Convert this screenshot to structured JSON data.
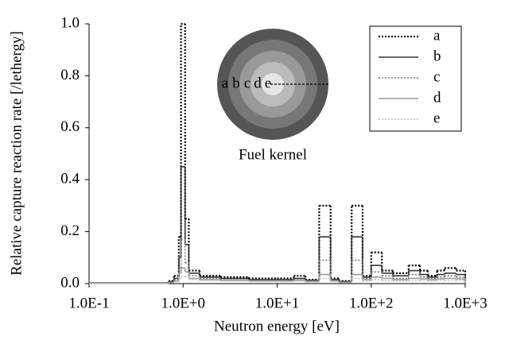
{
  "chart_data": {
    "type": "histogram",
    "xlabel": "Neutron energy [eV]",
    "ylabel": "Relative capture reaction rate [/lethergy]",
    "xscale": "log",
    "xlim": [
      0.1,
      1000
    ],
    "xticks": [
      {
        "value": 0.1,
        "label": "1.0E-1"
      },
      {
        "value": 1,
        "label": "1.0E+0"
      },
      {
        "value": 10,
        "label": "1.0E+1"
      },
      {
        "value": 100,
        "label": "1.0E+2"
      },
      {
        "value": 1000,
        "label": "1.0E+3"
      }
    ],
    "ylim": [
      0,
      1
    ],
    "yticks": [
      {
        "value": 0,
        "label": "0.0"
      },
      0.2,
      0.4,
      0.6,
      0.8,
      {
        "value": 1,
        "label": "1.0"
      }
    ],
    "grid": false,
    "legend": "upper right",
    "bins": [
      0.1,
      0.7,
      0.8,
      0.9,
      0.95,
      1.05,
      1.15,
      1.5,
      2.5,
      5,
      10,
      15,
      20,
      28,
      37,
      45,
      62,
      81,
      100,
      130,
      170,
      250,
      330,
      400,
      500,
      600,
      800,
      1000
    ],
    "series": [
      {
        "name": "a",
        "color": "#000000",
        "dash": true,
        "width": 2.2,
        "values": [
          0.002,
          0.01,
          0.03,
          0.18,
          1.0,
          0.25,
          0.05,
          0.03,
          0.025,
          0.02,
          0.02,
          0.03,
          0.015,
          0.3,
          0.02,
          0.01,
          0.3,
          0.03,
          0.12,
          0.05,
          0.04,
          0.07,
          0.05,
          0.03,
          0.05,
          0.06,
          0.05
        ]
      },
      {
        "name": "b",
        "color": "#333333",
        "dash": false,
        "width": 1.6,
        "values": [
          0.002,
          0.008,
          0.02,
          0.1,
          0.45,
          0.15,
          0.04,
          0.025,
          0.02,
          0.015,
          0.015,
          0.02,
          0.012,
          0.18,
          0.015,
          0.008,
          0.18,
          0.025,
          0.07,
          0.04,
          0.03,
          0.05,
          0.035,
          0.025,
          0.035,
          0.04,
          0.035
        ]
      },
      {
        "name": "c",
        "color": "#777777",
        "dash": true,
        "width": 1.6,
        "values": [
          0.001,
          0.005,
          0.015,
          0.06,
          0.17,
          0.08,
          0.03,
          0.02,
          0.015,
          0.012,
          0.012,
          0.015,
          0.01,
          0.09,
          0.012,
          0.006,
          0.09,
          0.02,
          0.045,
          0.03,
          0.02,
          0.035,
          0.025,
          0.02,
          0.025,
          0.03,
          0.025
        ]
      },
      {
        "name": "d",
        "color": "#999999",
        "dash": false,
        "width": 1.6,
        "values": [
          0.001,
          0.004,
          0.01,
          0.04,
          0.06,
          0.045,
          0.02,
          0.015,
          0.012,
          0.01,
          0.01,
          0.012,
          0.008,
          0.035,
          0.01,
          0.005,
          0.035,
          0.015,
          0.025,
          0.02,
          0.015,
          0.02,
          0.018,
          0.015,
          0.018,
          0.02,
          0.018
        ]
      },
      {
        "name": "e",
        "color": "#bbbbbb",
        "dash": true,
        "width": 1.4,
        "values": [
          0.001,
          0.003,
          0.008,
          0.02,
          0.03,
          0.025,
          0.015,
          0.012,
          0.01,
          0.008,
          0.008,
          0.01,
          0.006,
          0.02,
          0.008,
          0.004,
          0.02,
          0.01,
          0.015,
          0.012,
          0.01,
          0.012,
          0.012,
          0.01,
          0.012,
          0.012,
          0.012
        ]
      }
    ],
    "annotations": {
      "inset_labels": [
        "a",
        "b",
        "c",
        "d",
        "e"
      ],
      "inset_caption": "Fuel kernel"
    }
  }
}
